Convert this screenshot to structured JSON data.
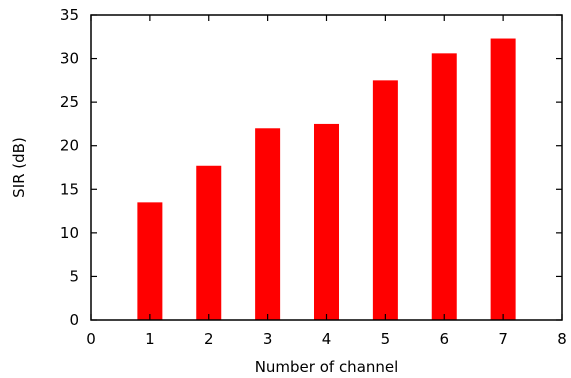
{
  "chart_data": {
    "type": "bar",
    "title": "",
    "xlabel": "Number of channel",
    "ylabel": "SIR (dB)",
    "categories": [
      1,
      2,
      3,
      4,
      5,
      6,
      7
    ],
    "values": [
      13.5,
      17.7,
      22.0,
      22.5,
      27.5,
      30.6,
      32.3
    ],
    "xlim": [
      0,
      8
    ],
    "ylim": [
      0,
      35
    ],
    "xticks": [
      "0",
      "1",
      "2",
      "3",
      "4",
      "5",
      "6",
      "7",
      "8"
    ],
    "yticks": [
      "0",
      "5",
      "10",
      "15",
      "20",
      "25",
      "30",
      "35"
    ],
    "grid": false,
    "legend": "none",
    "bar_color": "#ff0000",
    "frame_color": "#000000"
  }
}
